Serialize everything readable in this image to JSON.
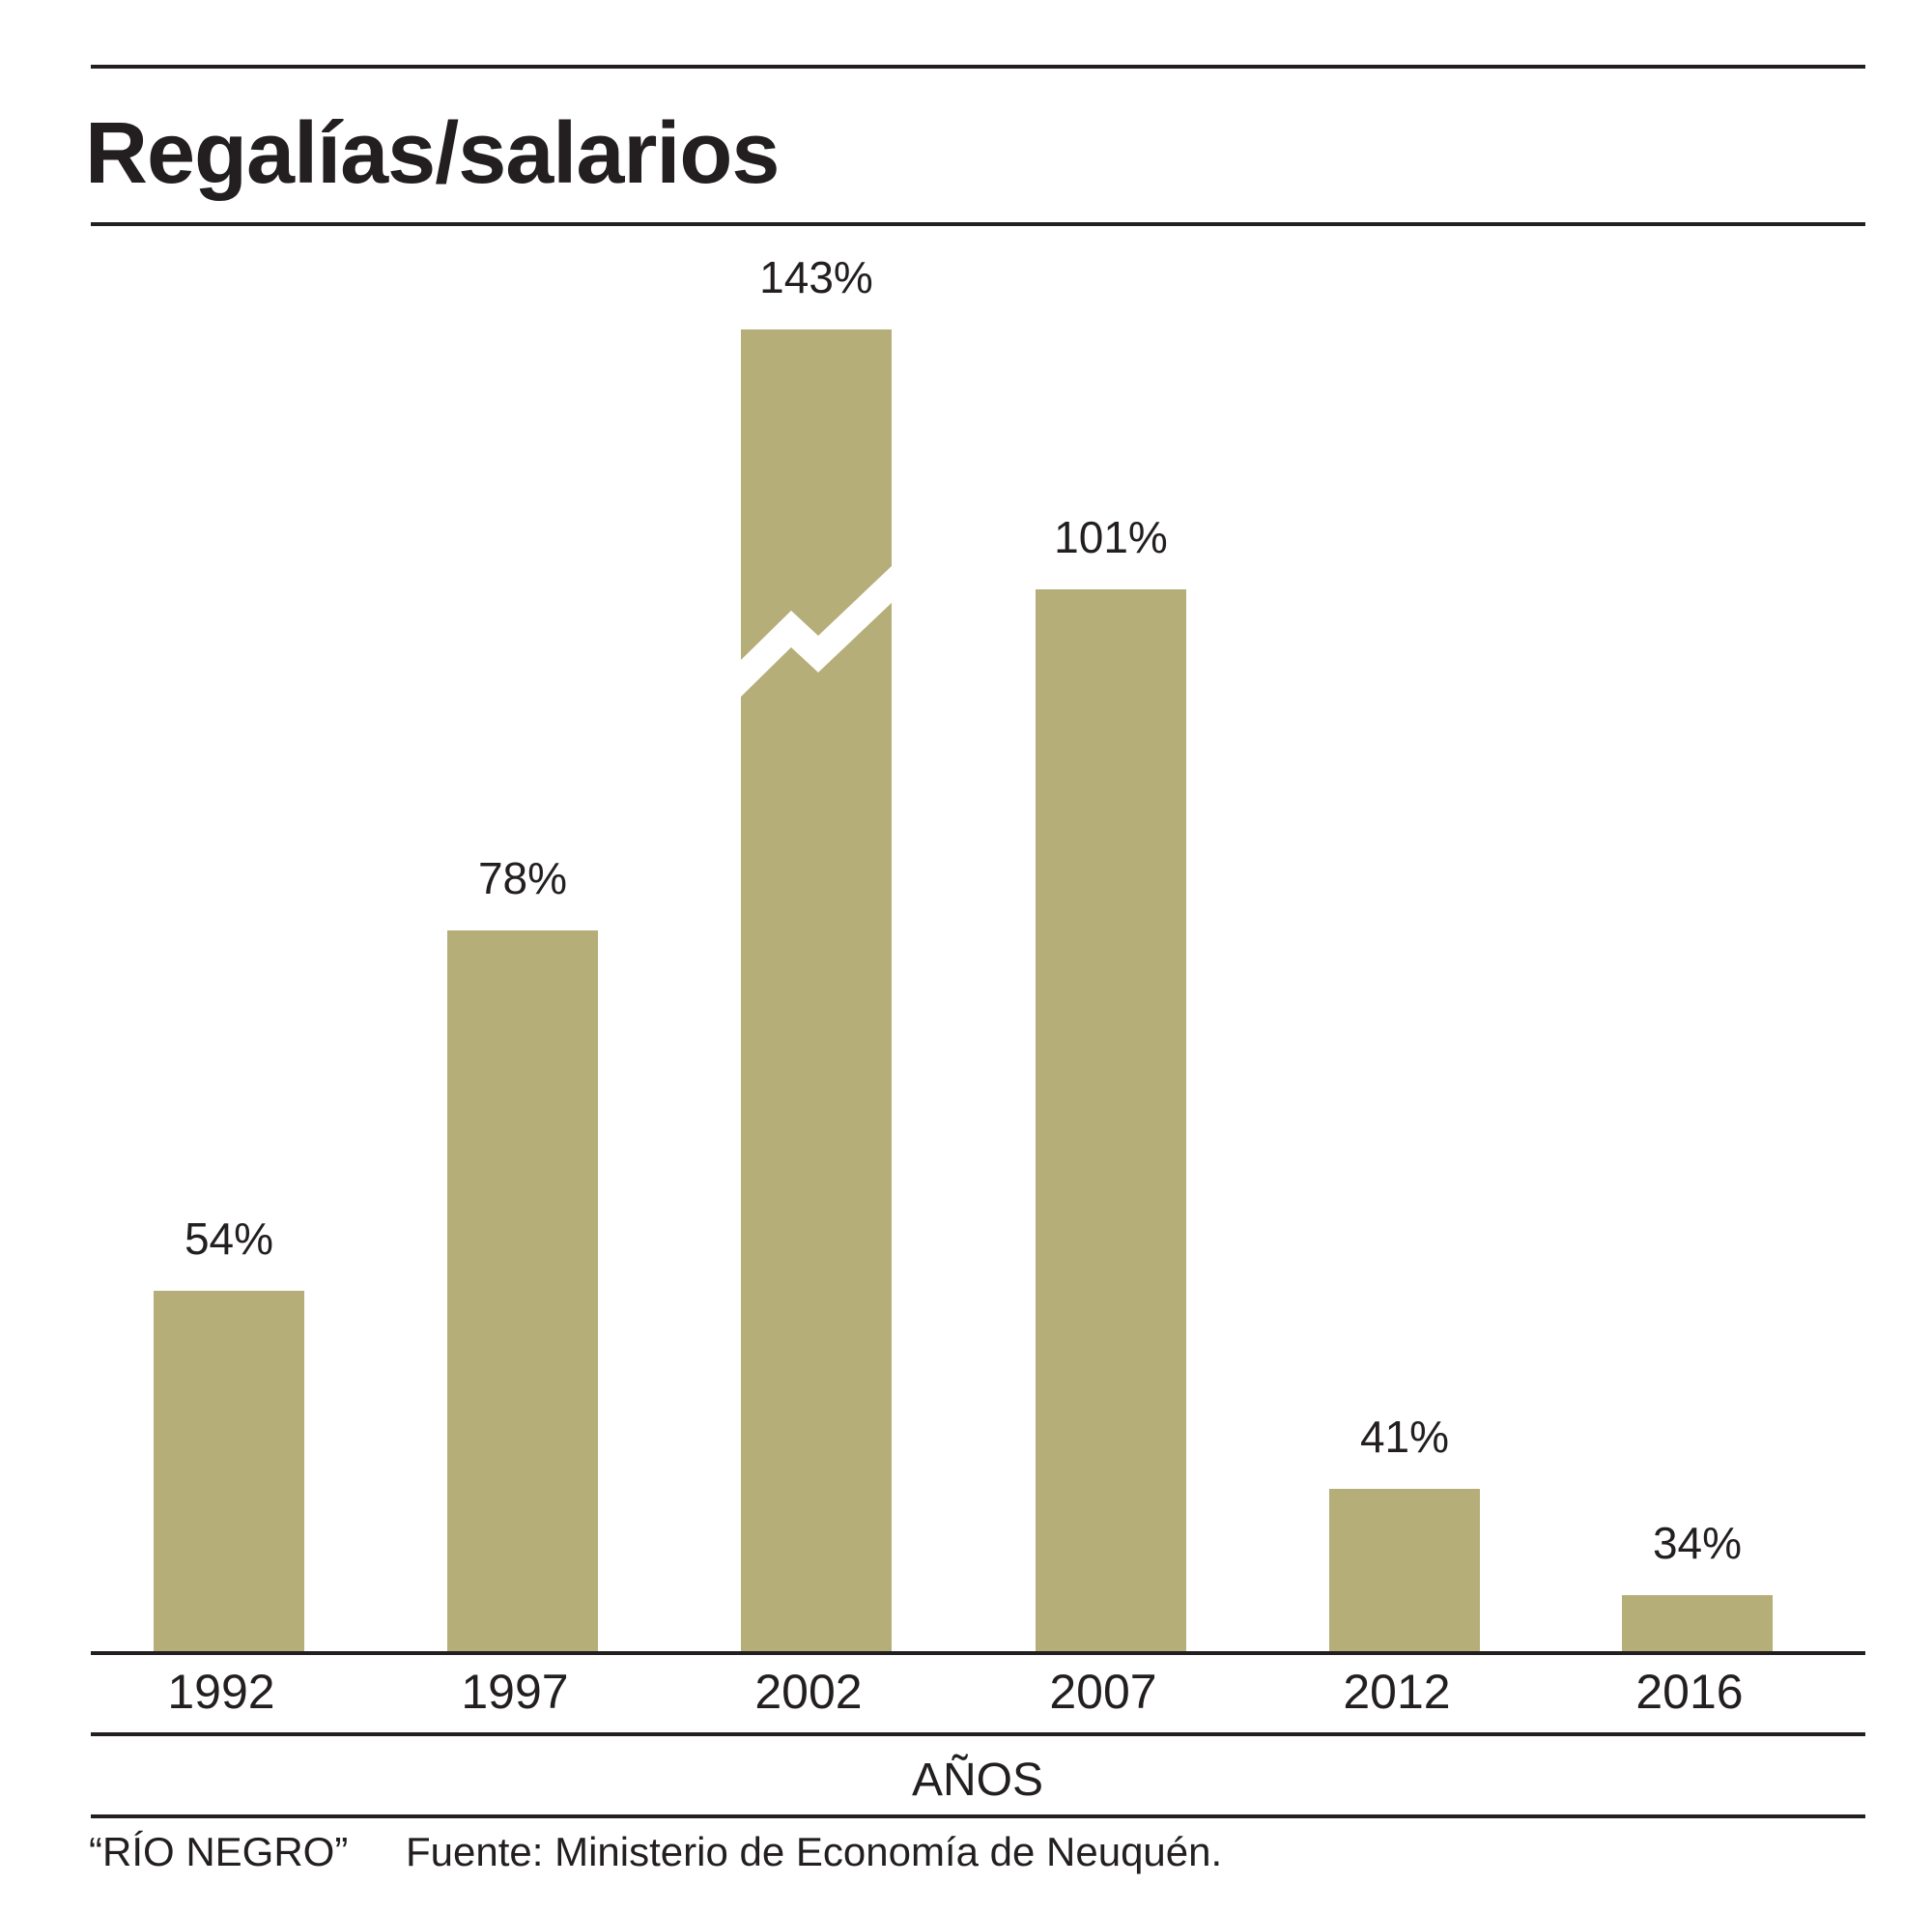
{
  "chart_data": {
    "type": "bar",
    "title": "Regalías/salarios",
    "categories": [
      "1992",
      "1997",
      "2002",
      "2007",
      "2012",
      "2016"
    ],
    "values": [
      54,
      78,
      143,
      101,
      41,
      34
    ],
    "value_labels": [
      "54%",
      "78%",
      "143%",
      "101%",
      "41%",
      "34%"
    ],
    "xlabel": "AÑOS",
    "ylabel": "",
    "axis_break_on": "2002",
    "bar_color": "#b5ae78",
    "grid": false
  },
  "footer": {
    "credit": "“RÍO NEGRO”",
    "source": "Fuente: Ministerio de Economía de Neuquén."
  }
}
